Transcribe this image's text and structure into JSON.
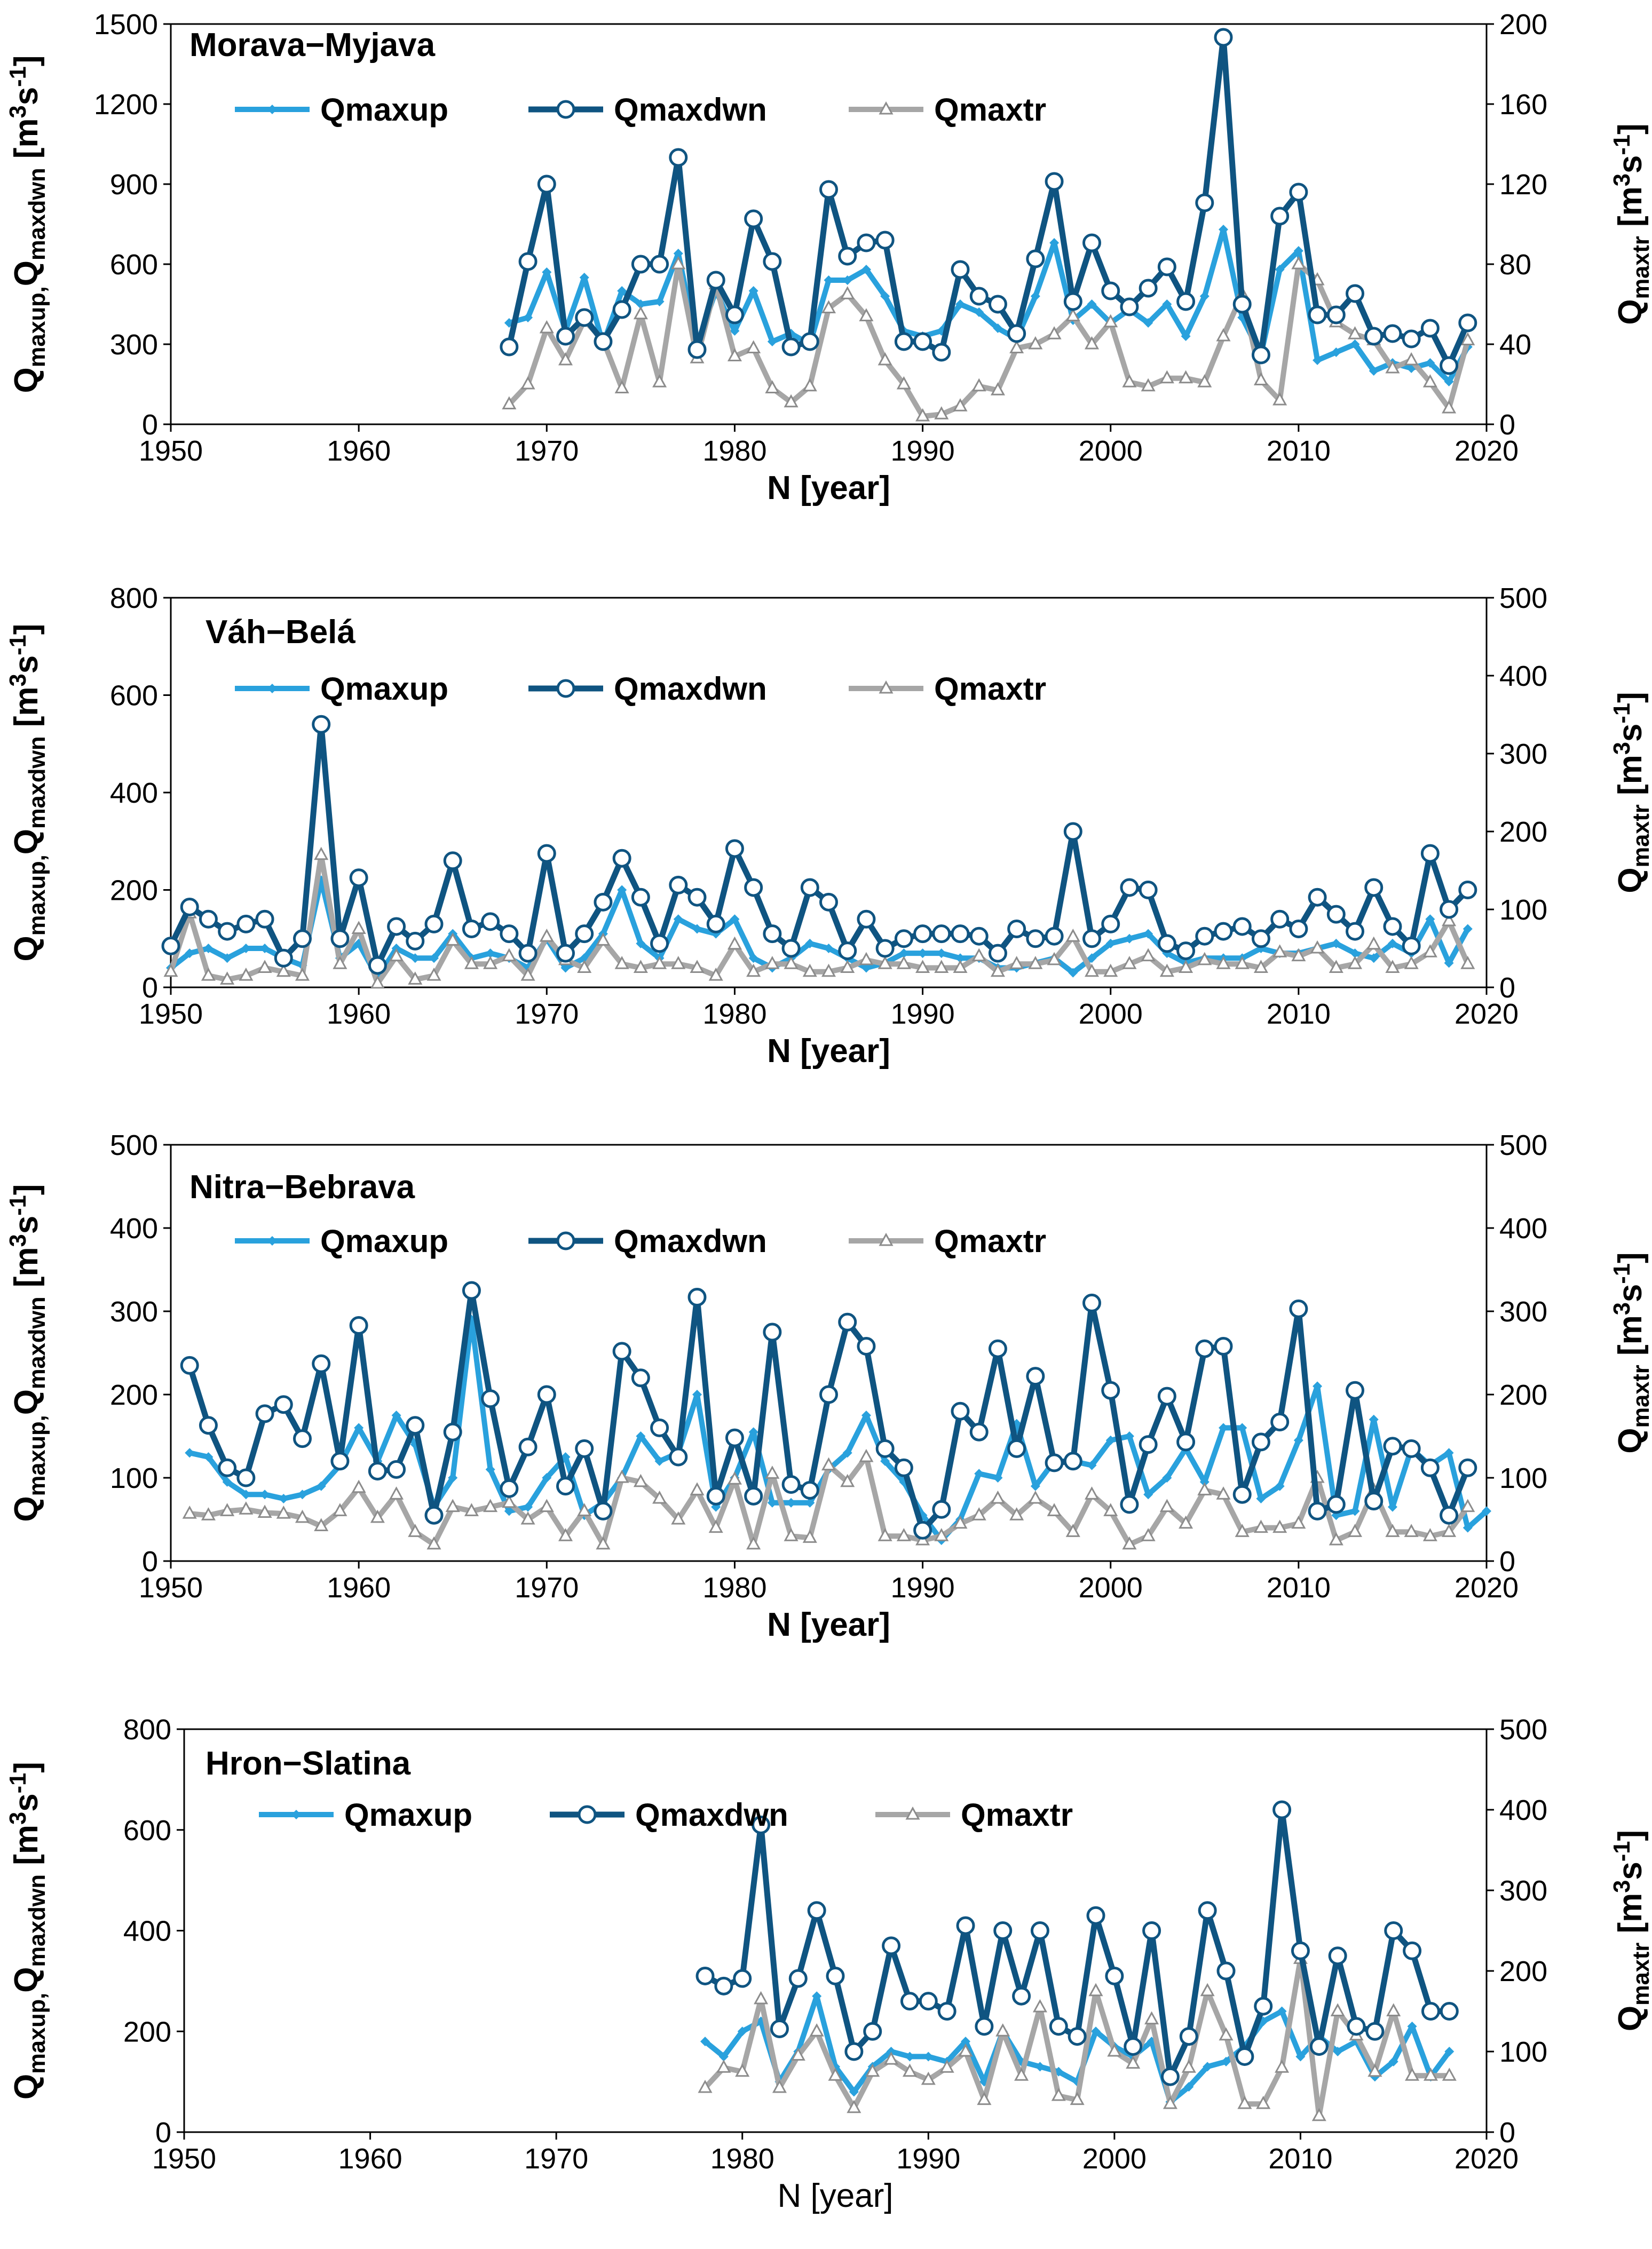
{
  "chart_data": [
    {
      "type": "line",
      "title": "Morava−Myjava",
      "xlabel": "N [year]",
      "ylabel_left": "Q<sub>maxup,</sub>Q<sub>maxdwn</sub> [m<sup>3</sup>s<sup>-1</sup>]",
      "ylabel_right": "Q<sub>maxtr</sub> [m<sup>3</sup>s<sup>-1</sup>]",
      "xlim": [
        1950,
        2020
      ],
      "xticks": [
        "1950",
        "1960",
        "1970",
        "1980",
        "1990",
        "2000",
        "2010",
        "2020"
      ],
      "ylim_left": [
        0,
        1500
      ],
      "yticks_left": [
        "0",
        "300",
        "600",
        "900",
        "1200",
        "1500"
      ],
      "ylim_right": [
        0,
        200
      ],
      "yticks_right": [
        "0",
        "40",
        "80",
        "120",
        "160",
        "200"
      ],
      "legend": [
        "Qmaxup",
        "Qmaxdwn",
        "Qmaxtr"
      ],
      "x_start": 1968,
      "series": [
        {
          "name": "Qmaxup",
          "axis": "left",
          "values": [
            380,
            400,
            570,
            350,
            550,
            300,
            500,
            450,
            460,
            640,
            300,
            500,
            350,
            500,
            310,
            340,
            300,
            540,
            540,
            580,
            480,
            350,
            330,
            350,
            450,
            420,
            360,
            320,
            480,
            680,
            390,
            450,
            380,
            430,
            380,
            450,
            330,
            480,
            730,
            400,
            260,
            580,
            650,
            240,
            270,
            300,
            200,
            230,
            210,
            230,
            160,
            290
          ]
        },
        {
          "name": "Qmaxdwn",
          "axis": "left",
          "values": [
            290,
            610,
            900,
            330,
            400,
            310,
            430,
            600,
            600,
            1000,
            280,
            540,
            410,
            770,
            610,
            290,
            310,
            880,
            630,
            680,
            690,
            310,
            310,
            270,
            580,
            480,
            450,
            340,
            620,
            910,
            460,
            680,
            500,
            440,
            510,
            590,
            460,
            830,
            1450,
            450,
            260,
            780,
            870,
            410,
            410,
            490,
            330,
            340,
            320,
            360,
            220,
            380
          ]
        },
        {
          "name": "Qmaxtr",
          "axis": "right",
          "values": [
            10,
            20,
            48,
            32,
            52,
            42,
            18,
            55,
            21,
            80,
            33,
            70,
            34,
            38,
            18,
            11,
            19,
            58,
            65,
            54,
            32,
            20,
            4,
            5,
            9,
            19,
            17,
            38,
            40,
            45,
            54,
            40,
            51,
            21,
            19,
            23,
            23,
            21,
            44,
            65,
            22,
            12,
            80,
            72,
            51,
            45,
            42,
            28,
            32,
            21,
            8,
            42
          ]
        }
      ]
    },
    {
      "type": "line",
      "title": "Váh−Belá",
      "xlabel": "N [year]",
      "ylabel_left": "Q<sub>maxup,</sub>Q<sub>maxdwn</sub> [m<sup>3</sup>s<sup>-1</sup>]",
      "ylabel_right": "Q<sub>maxtr</sub> [m<sup>3</sup>s<sup>-1</sup>]",
      "xlim": [
        1950,
        2020
      ],
      "xticks": [
        "1950",
        "1960",
        "1970",
        "1980",
        "1990",
        "2000",
        "2010",
        "2020"
      ],
      "ylim_left": [
        0,
        800
      ],
      "yticks_left": [
        "0",
        "200",
        "400",
        "600",
        "800"
      ],
      "ylim_right": [
        0,
        500
      ],
      "yticks_right": [
        "0",
        "100",
        "200",
        "300",
        "400",
        "500"
      ],
      "legend": [
        "Qmaxup",
        "Qmaxdwn",
        "Qmaxtr"
      ],
      "x_start": 1950,
      "series": [
        {
          "name": "Qmaxup",
          "axis": "left",
          "values": [
            40,
            70,
            80,
            60,
            80,
            80,
            60,
            45,
            220,
            60,
            90,
            20,
            80,
            60,
            60,
            110,
            60,
            70,
            60,
            40,
            100,
            40,
            60,
            110,
            200,
            90,
            60,
            140,
            120,
            110,
            140,
            60,
            40,
            60,
            90,
            80,
            60,
            40,
            50,
            70,
            70,
            70,
            60,
            60,
            40,
            40,
            50,
            60,
            30,
            60,
            90,
            100,
            110,
            70,
            50,
            60,
            60,
            60,
            80,
            70,
            70,
            80,
            90,
            70,
            60,
            90,
            70,
            140,
            50,
            120
          ]
        },
        {
          "name": "Qmaxdwn",
          "axis": "left",
          "values": [
            85,
            165,
            140,
            115,
            130,
            140,
            60,
            100,
            540,
            100,
            225,
            45,
            125,
            95,
            130,
            260,
            120,
            135,
            110,
            70,
            275,
            70,
            110,
            175,
            265,
            185,
            90,
            210,
            185,
            130,
            285,
            205,
            110,
            80,
            205,
            175,
            75,
            140,
            80,
            100,
            110,
            110,
            110,
            105,
            70,
            120,
            100,
            105,
            320,
            100,
            130,
            205,
            200,
            90,
            75,
            105,
            115,
            125,
            100,
            140,
            120,
            185,
            150,
            115,
            205,
            125,
            85,
            275,
            160,
            200
          ]
        },
        {
          "name": "Qmaxtr",
          "axis": "right",
          "values": [
            20,
            95,
            15,
            10,
            15,
            25,
            20,
            15,
            170,
            30,
            75,
            5,
            40,
            10,
            15,
            60,
            30,
            30,
            40,
            15,
            65,
            35,
            25,
            60,
            30,
            25,
            30,
            30,
            25,
            15,
            55,
            20,
            30,
            30,
            20,
            20,
            25,
            35,
            30,
            30,
            25,
            25,
            25,
            40,
            20,
            30,
            30,
            35,
            65,
            20,
            20,
            30,
            40,
            20,
            25,
            35,
            30,
            30,
            25,
            45,
            40,
            50,
            25,
            30,
            55,
            25,
            30,
            45,
            85,
            30
          ]
        }
      ]
    },
    {
      "type": "line",
      "title": "Nitra−Bebrava",
      "xlabel": "N [year]",
      "ylabel_left": "Q<sub>maxup,</sub>Q<sub>maxdwn</sub> [m<sup>3</sup>s<sup>-1</sup>]",
      "ylabel_right": "Q<sub>maxtr</sub> [m<sup>3</sup>s<sup>-1</sup>]",
      "xlim": [
        1950,
        2020
      ],
      "xticks": [
        "1950",
        "1960",
        "1970",
        "1980",
        "1990",
        "2000",
        "2010",
        "2020"
      ],
      "ylim_left": [
        0,
        500
      ],
      "yticks_left": [
        "0",
        "100",
        "200",
        "300",
        "400",
        "500"
      ],
      "ylim_right": [
        0,
        500
      ],
      "yticks_right": [
        "0",
        "100",
        "200",
        "300",
        "400",
        "500"
      ],
      "legend": [
        "Qmaxup",
        "Qmaxdwn",
        "Qmaxtr"
      ],
      "x_start": 1951,
      "series": [
        {
          "name": "Qmaxup",
          "axis": "left",
          "values": [
            130,
            125,
            95,
            80,
            80,
            75,
            80,
            90,
            115,
            160,
            120,
            175,
            140,
            65,
            100,
            290,
            110,
            60,
            65,
            100,
            125,
            55,
            70,
            100,
            150,
            120,
            130,
            200,
            65,
            100,
            155,
            70,
            70,
            70,
            110,
            130,
            175,
            120,
            95,
            55,
            25,
            50,
            105,
            100,
            165,
            90,
            120,
            120,
            115,
            145,
            150,
            80,
            100,
            135,
            95,
            160,
            160,
            75,
            90,
            145,
            210,
            55,
            60,
            170,
            65,
            135,
            115,
            130,
            40,
            60
          ]
        },
        {
          "name": "Qmaxdwn",
          "axis": "left",
          "values": [
            235,
            163,
            112,
            100,
            177,
            188,
            147,
            237,
            120,
            283,
            108,
            110,
            163,
            55,
            155,
            325,
            195,
            87,
            137,
            200,
            90,
            135,
            60,
            252,
            220,
            160,
            125,
            317,
            78,
            148,
            78,
            275,
            92,
            85,
            200,
            287,
            258,
            135,
            112,
            37,
            62,
            180,
            155,
            255,
            135,
            222,
            118,
            120,
            310,
            205,
            68,
            140,
            198,
            143,
            255,
            258,
            80,
            143,
            167,
            303,
            60,
            68,
            205,
            72,
            138,
            135,
            112,
            55,
            112
          ]
        },
        {
          "name": "Qmaxtr",
          "axis": "right",
          "values": [
            57,
            55,
            60,
            62,
            58,
            57,
            52,
            42,
            60,
            88,
            52,
            80,
            35,
            20,
            65,
            60,
            65,
            70,
            50,
            65,
            30,
            60,
            20,
            100,
            95,
            75,
            50,
            85,
            40,
            98,
            20,
            105,
            30,
            28,
            115,
            95,
            125,
            30,
            30,
            25,
            30,
            45,
            55,
            75,
            55,
            75,
            60,
            35,
            80,
            60,
            20,
            30,
            65,
            45,
            85,
            80,
            35,
            40,
            40,
            45,
            100,
            25,
            35,
            85,
            35,
            35,
            30,
            35,
            65
          ]
        }
      ]
    },
    {
      "type": "line",
      "title": "Hron−Slatina",
      "xlabel": "N [year]",
      "ylabel_left": "Q<sub>maxup,</sub>Q<sub>maxdwn</sub> [m<sup>3</sup>s<sup>-1</sup>]",
      "ylabel_right": "Q<sub>maxtr</sub> [m<sup>3</sup>s<sup>-1</sup>]",
      "xlim": [
        1950,
        2020
      ],
      "xticks": [
        "1950",
        "1960",
        "1970",
        "1980",
        "1990",
        "2000",
        "2010",
        "2020"
      ],
      "ylim_left": [
        0,
        800
      ],
      "yticks_left": [
        "0",
        "200",
        "400",
        "600",
        "800"
      ],
      "ylim_right": [
        0,
        500
      ],
      "yticks_right": [
        "0",
        "100",
        "200",
        "300",
        "400",
        "500"
      ],
      "legend": [
        "Qmaxup",
        "Qmaxdwn",
        "Qmaxtr"
      ],
      "x_start": 1978,
      "series": [
        {
          "name": "Qmaxup",
          "axis": "left",
          "values": [
            180,
            150,
            200,
            220,
            100,
            160,
            270,
            130,
            80,
            130,
            160,
            150,
            150,
            140,
            180,
            100,
            200,
            140,
            130,
            120,
            100,
            200,
            170,
            150,
            180,
            60,
            90,
            130,
            140,
            170,
            220,
            240,
            150,
            190,
            160,
            180,
            110,
            140,
            210,
            110,
            160
          ]
        },
        {
          "name": "Qmaxdwn",
          "axis": "left",
          "values": [
            310,
            290,
            305,
            610,
            205,
            305,
            440,
            310,
            160,
            200,
            370,
            260,
            260,
            240,
            410,
            210,
            400,
            270,
            400,
            210,
            190,
            430,
            310,
            170,
            400,
            110,
            190,
            440,
            320,
            150,
            250,
            640,
            360,
            170,
            350,
            210,
            200,
            400,
            360,
            240,
            240
          ]
        },
        {
          "name": "Qmaxtr",
          "axis": "right",
          "values": [
            55,
            80,
            75,
            165,
            55,
            95,
            125,
            70,
            30,
            75,
            90,
            75,
            65,
            80,
            100,
            40,
            125,
            70,
            155,
            45,
            40,
            175,
            100,
            85,
            140,
            35,
            80,
            175,
            120,
            35,
            35,
            80,
            215,
            20,
            150,
            120,
            75,
            150,
            70,
            70,
            70
          ]
        }
      ]
    }
  ],
  "colors": {
    "Qmaxup": "#29a1dd",
    "Qmaxdwn": "#0f5481",
    "Qmaxtr": "#a6a6a6"
  }
}
